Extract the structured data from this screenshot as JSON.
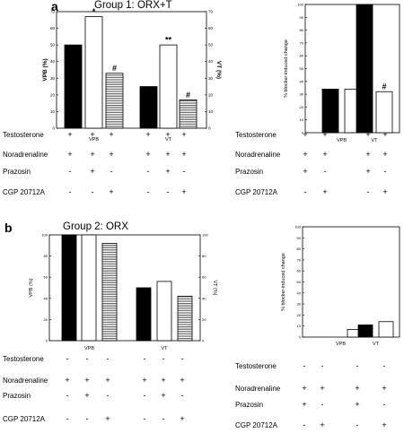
{
  "panels": {
    "a": {
      "letter": "a",
      "title": "Group 1: ORX+T"
    },
    "b": {
      "letter": "b",
      "title": "Group 2: ORX"
    }
  },
  "chart_data": [
    {
      "id": "a_left",
      "type": "bar",
      "categories": [
        "VPB",
        "VT"
      ],
      "series": [
        {
          "values": [
            50,
            25
          ],
          "fill": "#000000"
        },
        {
          "values": [
            67,
            50
          ],
          "fill": "#ffffff"
        },
        {
          "values": [
            33,
            17
          ],
          "fill": "hatch"
        }
      ],
      "ylabel": "VPB (%)",
      "ylabel_right": "VT (%)",
      "ylim": [
        0,
        70
      ],
      "yticks": [
        0,
        10,
        20,
        30,
        40,
        50,
        60,
        70
      ],
      "annotations": [
        {
          "text": "*",
          "category": "VPB",
          "series": 1
        },
        {
          "text": "#",
          "category": "VPB",
          "series": 2
        },
        {
          "text": "**",
          "category": "VT",
          "series": 1
        },
        {
          "text": "#",
          "category": "VT",
          "series": 2
        }
      ]
    },
    {
      "id": "a_right",
      "type": "bar",
      "categories": [
        "VPB",
        "VT"
      ],
      "series": [
        {
          "values": [
            34,
            100
          ],
          "fill": "#000000"
        },
        {
          "values": [
            34,
            32
          ],
          "fill": "#ffffff"
        }
      ],
      "ylabel": "% blocker-induced change",
      "ylim": [
        0,
        100
      ],
      "yticks": [
        0,
        10,
        20,
        30,
        40,
        50,
        60,
        70,
        80,
        90,
        100
      ],
      "annotations": [
        {
          "text": "#",
          "category": "VT",
          "series": 1
        }
      ]
    },
    {
      "id": "b_left",
      "type": "bar",
      "categories": [
        "VPB",
        "VT"
      ],
      "series": [
        {
          "values": [
            100,
            50
          ],
          "fill": "#000000"
        },
        {
          "values": [
            100,
            56
          ],
          "fill": "#ffffff"
        },
        {
          "values": [
            92,
            42
          ],
          "fill": "hatch"
        }
      ],
      "ylabel": "VPB (%)",
      "ylabel_right": "VT (%)",
      "ylim": [
        0,
        100
      ],
      "yticks": [
        0,
        20,
        40,
        60,
        80,
        100
      ],
      "annotations": []
    },
    {
      "id": "b_right",
      "type": "bar",
      "categories": [
        "VPB",
        "VT"
      ],
      "series": [
        {
          "values": [
            0,
            11
          ],
          "fill": "#000000"
        },
        {
          "values": [
            7,
            14
          ],
          "fill": "#ffffff"
        }
      ],
      "ylabel": "% blocker-induced change",
      "ylim": [
        0,
        100
      ],
      "yticks": [
        0,
        10,
        20,
        30,
        40,
        50,
        60,
        70,
        80,
        90,
        100
      ],
      "annotations": []
    }
  ],
  "treatment_tables": [
    {
      "id": "a_left",
      "rows": [
        {
          "label": "Testosterone",
          "cells": [
            "+",
            "+",
            "+",
            "+",
            "+",
            "+"
          ]
        },
        {
          "label": "Noradrenaline",
          "cells": [
            "+",
            "+",
            "+",
            "+",
            "+",
            "+"
          ]
        },
        {
          "label": "Prazosin",
          "cells": [
            "-",
            "+",
            "-",
            "-",
            "+",
            "-"
          ]
        },
        {
          "label": "CGP 20712A",
          "cells": [
            "-",
            "-",
            "+",
            "-",
            "-",
            "+"
          ]
        }
      ]
    },
    {
      "id": "a_right",
      "rows": [
        {
          "label": "Testosterone",
          "cells": [
            "+",
            "+",
            "+",
            "+"
          ]
        },
        {
          "label": "Noradrenaline",
          "cells": [
            "+",
            "+",
            "+",
            "+"
          ]
        },
        {
          "label": "Prazosin",
          "cells": [
            "+",
            "-",
            "+",
            "-"
          ]
        },
        {
          "label": "CGP 20712A",
          "cells": [
            "-",
            "+",
            "-",
            "+"
          ]
        }
      ]
    },
    {
      "id": "b_left",
      "rows": [
        {
          "label": "Testosterone",
          "cells": [
            "-",
            "-",
            "-",
            "-",
            "-",
            "-"
          ]
        },
        {
          "label": "Noradrenaline",
          "cells": [
            "+",
            "+",
            "+",
            "+",
            "+",
            "+"
          ]
        },
        {
          "label": "Prazosin",
          "cells": [
            "-",
            "+",
            "-",
            "-",
            "+",
            "-"
          ]
        },
        {
          "label": "CGP 20712A",
          "cells": [
            "-",
            "-",
            "+",
            "-",
            "-",
            "+"
          ]
        }
      ]
    },
    {
      "id": "b_right",
      "rows": [
        {
          "label": "Testosterone",
          "cells": [
            "-",
            "-",
            "-",
            "-"
          ]
        },
        {
          "label": "Noradrenaline",
          "cells": [
            "+",
            "+",
            "+",
            "+"
          ]
        },
        {
          "label": "Prazosin",
          "cells": [
            "+",
            "-",
            "+",
            "-"
          ]
        },
        {
          "label": "CGP 20712A",
          "cells": [
            "-",
            "+",
            "-",
            "+"
          ]
        }
      ]
    }
  ]
}
